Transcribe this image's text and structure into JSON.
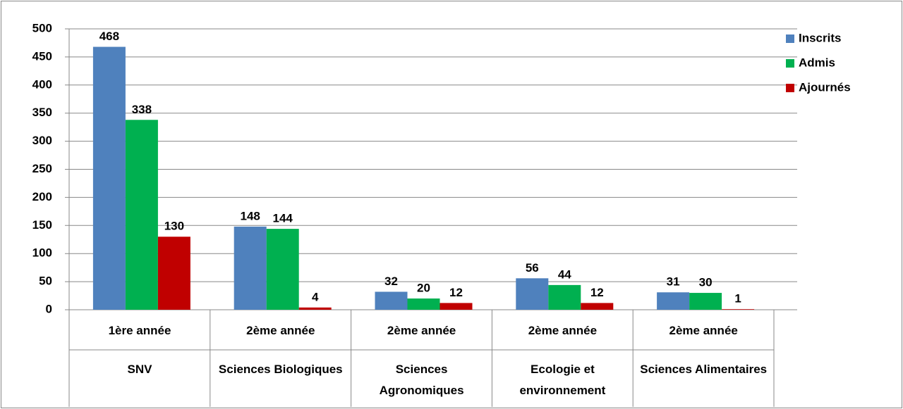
{
  "chart_data": {
    "type": "bar",
    "categories": [
      [
        "1ère année",
        "SNV"
      ],
      [
        "2ème année",
        "Sciences Biologiques"
      ],
      [
        "2ème année",
        "Sciences Agronomiques"
      ],
      [
        "2ème année",
        "Ecologie et environnement"
      ],
      [
        "2ème année",
        "Sciences Alimentaires"
      ]
    ],
    "series": [
      {
        "name": "Inscrits",
        "color": "#4f81bd",
        "values": [
          468,
          148,
          32,
          56,
          31
        ]
      },
      {
        "name": "Admis",
        "color": "#00b050",
        "values": [
          338,
          144,
          20,
          44,
          30
        ]
      },
      {
        "name": "Ajournés",
        "color": "#c00000",
        "values": [
          130,
          4,
          12,
          12,
          1
        ]
      }
    ],
    "ylim": [
      0,
      500
    ],
    "yticks": [
      0,
      50,
      100,
      150,
      200,
      250,
      300,
      350,
      400,
      450,
      500
    ],
    "grid": true,
    "legend": "right"
  }
}
